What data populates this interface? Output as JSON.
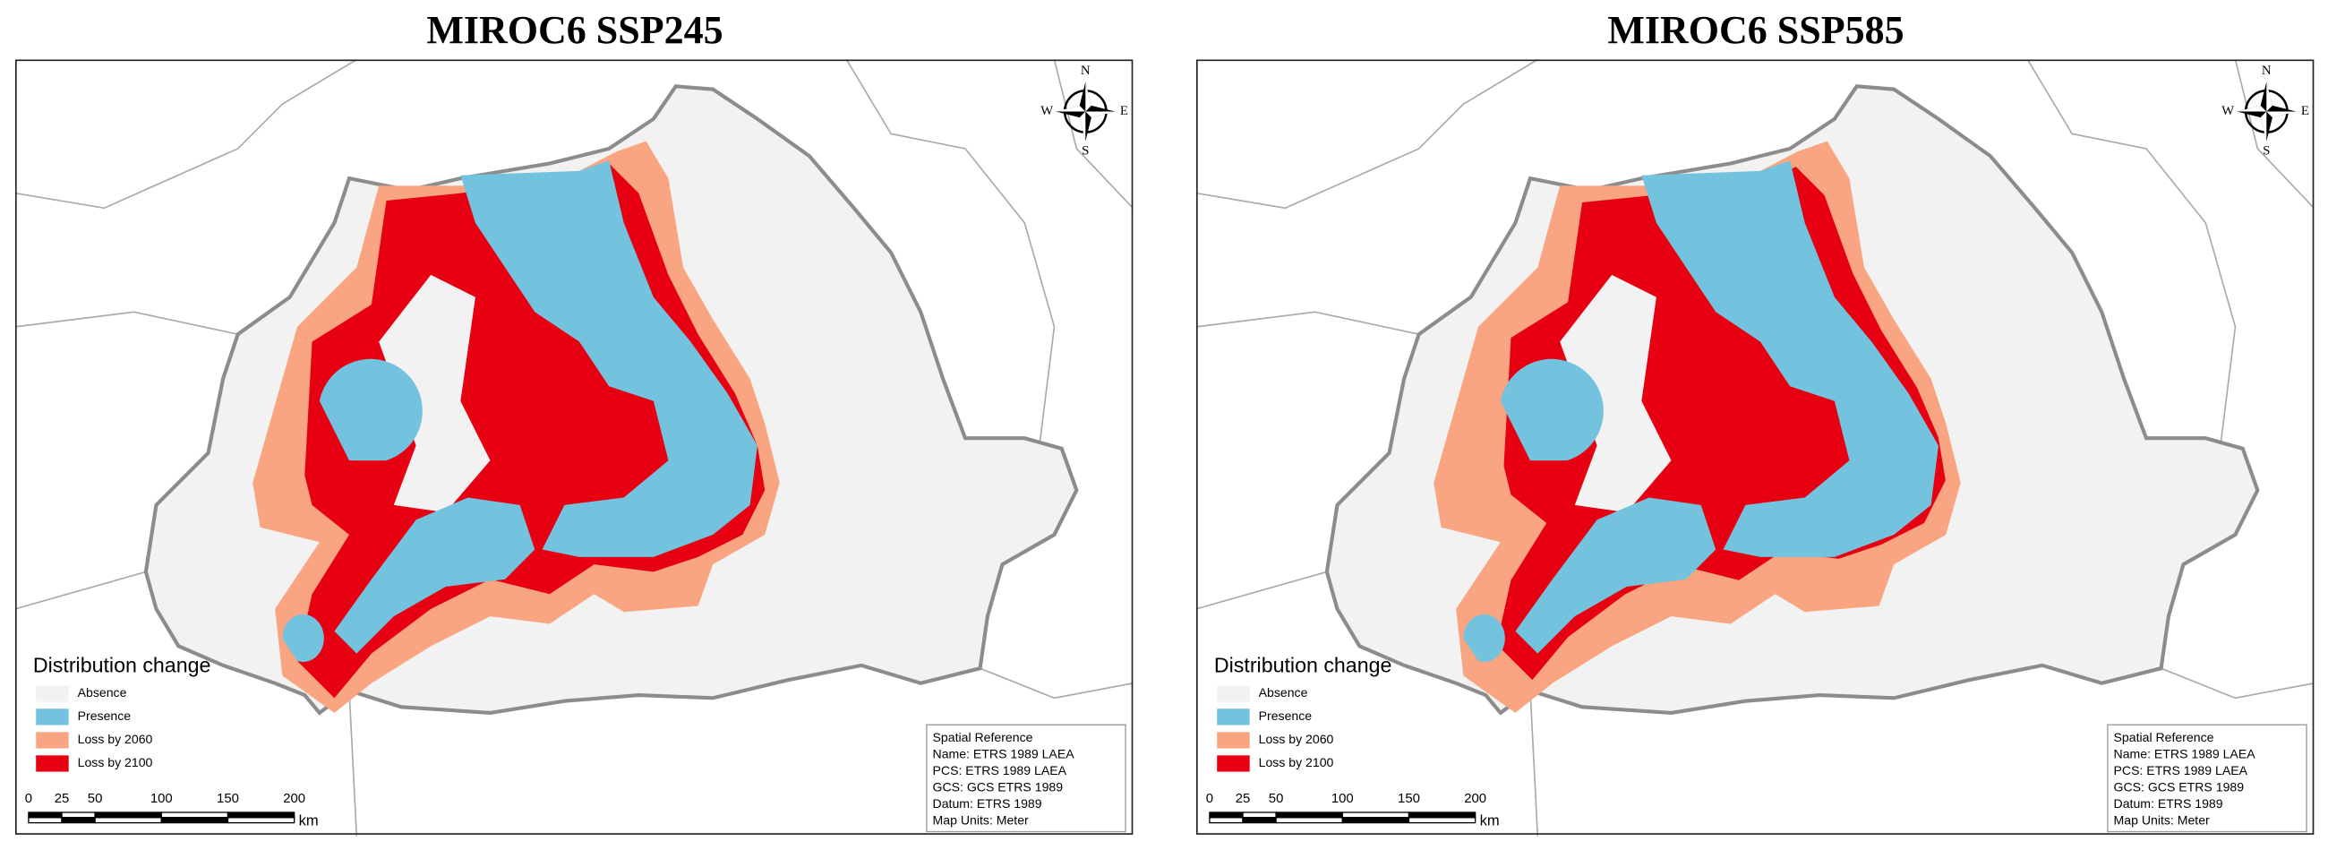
{
  "panels": [
    {
      "title": "MIROC6 SSP245",
      "compass": {
        "n": "N",
        "e": "E",
        "s": "S",
        "w": "W"
      },
      "legend": {
        "title": "Distribution change",
        "items": [
          {
            "label": "Absence",
            "color": "#f2f2f2"
          },
          {
            "label": "Presence",
            "color": "#73c2de"
          },
          {
            "label": "Loss by 2060",
            "color": "#f9a582"
          },
          {
            "label": "Loss by 2100",
            "color": "#e60012"
          }
        ]
      },
      "scale_bar": {
        "ticks": [
          0,
          25,
          50,
          100,
          150,
          200
        ],
        "unit": "km"
      },
      "spatial_reference": [
        "Spatial Reference",
        "Name: ETRS 1989 LAEA",
        "PCS: ETRS 1989 LAEA",
        "GCS: GCS ETRS 1989",
        "Datum: ETRS 1989",
        "Map Units: Meter"
      ]
    },
    {
      "title": "MIROC6 SSP585",
      "compass": {
        "n": "N",
        "e": "E",
        "s": "S",
        "w": "W"
      },
      "legend": {
        "title": "Distribution change",
        "items": [
          {
            "label": "Absence",
            "color": "#f2f2f2"
          },
          {
            "label": "Presence",
            "color": "#73c2de"
          },
          {
            "label": "Loss by 2060",
            "color": "#f9a582"
          },
          {
            "label": "Loss by 2100",
            "color": "#e60012"
          }
        ]
      },
      "scale_bar": {
        "ticks": [
          0,
          25,
          50,
          100,
          150,
          200
        ],
        "unit": "km"
      },
      "spatial_reference": [
        "Spatial Reference",
        "Name: ETRS 1989 LAEA",
        "PCS: ETRS 1989 LAEA",
        "GCS: GCS ETRS 1989",
        "Datum: ETRS 1989",
        "Map Units: Meter"
      ]
    }
  ]
}
